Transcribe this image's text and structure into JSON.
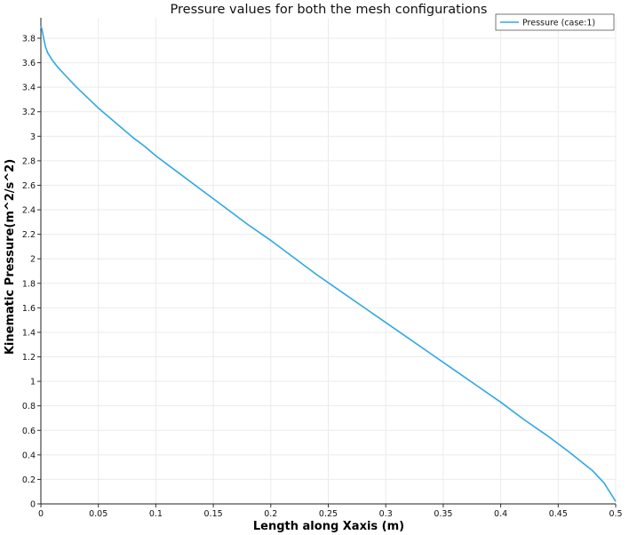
{
  "chart_data": {
    "type": "line",
    "title": "Pressure values for both the mesh configurations",
    "xlabel": "Length along Xaxis (m)",
    "ylabel": "Kinematic Pressure(m^2/s^2)",
    "xlim": [
      0,
      0.5
    ],
    "ylim": [
      0,
      3.9
    ],
    "x_ticks": [
      0,
      0.05,
      0.1,
      0.15,
      0.2,
      0.25,
      0.3,
      0.35,
      0.4,
      0.45,
      0.5
    ],
    "x_tick_labels": [
      "0",
      "0.05",
      "0.1",
      "0.15",
      "0.2",
      "0.25",
      "0.3",
      "0.35",
      "0.4",
      "0.45",
      "0.5"
    ],
    "y_ticks": [
      0,
      0.2,
      0.4,
      0.6,
      0.8,
      1,
      1.2,
      1.4,
      1.6,
      1.8,
      2,
      2.2,
      2.4,
      2.6,
      2.8,
      3,
      3.2,
      3.4,
      3.6,
      3.8
    ],
    "y_tick_labels": [
      "0",
      "0.2",
      "0.4",
      "0.6",
      "0.8",
      "1",
      "1.2",
      "1.4",
      "1.6",
      "1.8",
      "2",
      "2.2",
      "2.4",
      "2.6",
      "2.8",
      "3",
      "3.2",
      "3.4",
      "3.6",
      "3.8"
    ],
    "grid": true,
    "legend_position": "top-right",
    "series": [
      {
        "name": "Pressure (case:1)",
        "color": "#2ea8e6",
        "x": [
          0,
          0.001,
          0.002,
          0.004,
          0.006,
          0.01,
          0.015,
          0.02,
          0.03,
          0.04,
          0.05,
          0.06,
          0.07,
          0.08,
          0.09,
          0.1,
          0.12,
          0.14,
          0.16,
          0.18,
          0.2,
          0.22,
          0.24,
          0.26,
          0.28,
          0.3,
          0.32,
          0.34,
          0.36,
          0.38,
          0.4,
          0.42,
          0.44,
          0.46,
          0.48,
          0.49,
          0.5
        ],
        "y": [
          3.9,
          3.87,
          3.82,
          3.73,
          3.68,
          3.62,
          3.56,
          3.51,
          3.41,
          3.32,
          3.23,
          3.15,
          3.07,
          2.99,
          2.92,
          2.84,
          2.7,
          2.56,
          2.42,
          2.28,
          2.15,
          2.01,
          1.87,
          1.74,
          1.61,
          1.48,
          1.35,
          1.22,
          1.09,
          0.96,
          0.83,
          0.69,
          0.56,
          0.42,
          0.27,
          0.17,
          0.02
        ]
      }
    ]
  }
}
